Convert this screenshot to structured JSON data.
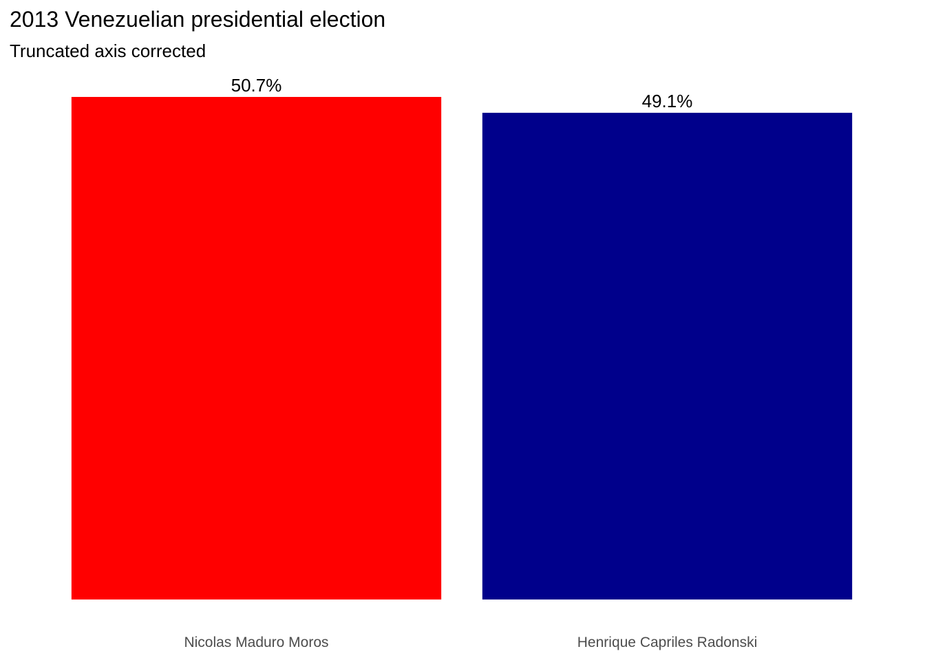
{
  "chart_data": {
    "type": "bar",
    "title": "2013 Venezuelian presidential election",
    "subtitle": "Truncated axis corrected",
    "xlabel": "",
    "ylabel": "",
    "categories": [
      "Nicolas Maduro Moros",
      "Henrique Capriles Radonski"
    ],
    "values": [
      50.7,
      49.1
    ],
    "value_labels": [
      "50.7%",
      "49.1%"
    ],
    "colors": [
      "#ff0000",
      "#00008b"
    ],
    "ylim": [
      0,
      50.7
    ],
    "grid": false,
    "legend": "none"
  }
}
